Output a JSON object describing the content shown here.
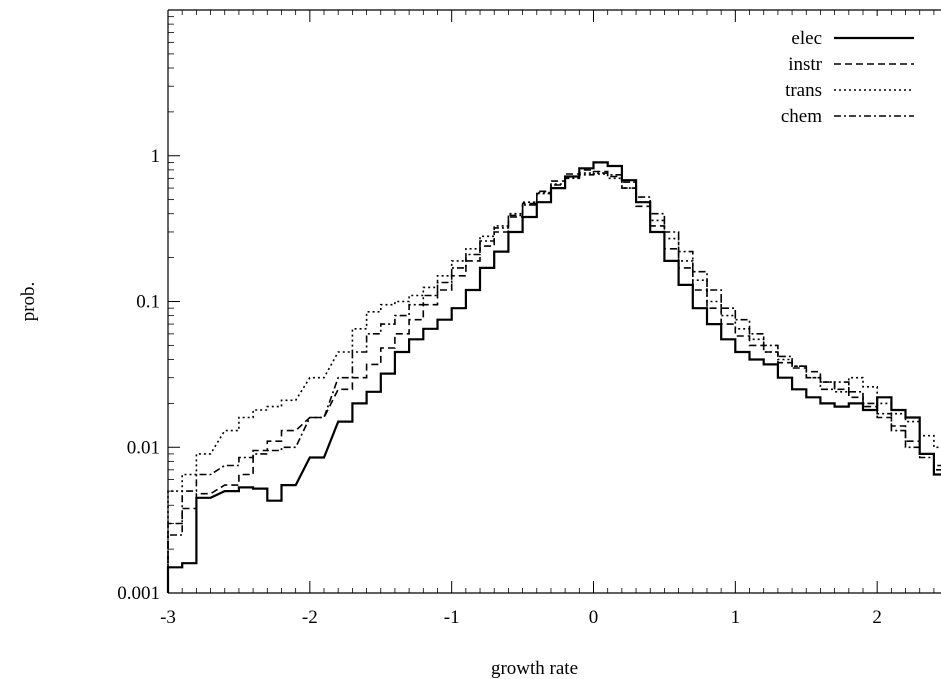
{
  "chart_data": {
    "type": "line",
    "title": "",
    "xlabel": "growth rate",
    "ylabel": "prob.",
    "xlim": [
      -3,
      2.45
    ],
    "ylim": [
      0.001,
      10
    ],
    "y_scale": "log",
    "grid": false,
    "legend_position": "top-right",
    "x_ticks": [
      -3,
      -2,
      -1,
      0,
      1,
      2
    ],
    "x_tick_labels": [
      "-3",
      "-2",
      "-1",
      "0",
      "1",
      "2"
    ],
    "y_ticks": [
      0.001,
      0.01,
      0.1,
      1
    ],
    "y_tick_labels": [
      "0.001",
      "0.01",
      "0.1",
      "1"
    ],
    "series": [
      {
        "name": "elec",
        "style": "solid",
        "stroke_width": 2.2,
        "x": [
          -3,
          -2.9,
          -2.8,
          -2.6,
          -2.5,
          -2.4,
          -2.3,
          -2.2,
          -2.0,
          -1.8,
          -1.7,
          -1.6,
          -1.5,
          -1.4,
          -1.3,
          -1.2,
          -1.1,
          -1.0,
          -0.9,
          -0.8,
          -0.7,
          -0.6,
          -0.5,
          -0.4,
          -0.3,
          -0.2,
          -0.1,
          0.0,
          0.1,
          0.2,
          0.3,
          0.4,
          0.5,
          0.6,
          0.7,
          0.8,
          0.9,
          1.0,
          1.1,
          1.2,
          1.3,
          1.4,
          1.5,
          1.6,
          1.7,
          1.8,
          1.9,
          2.0,
          2.1,
          2.2,
          2.3,
          2.4
        ],
        "y": [
          0.0015,
          0.0016,
          0.0045,
          0.005,
          0.0053,
          0.0052,
          0.0043,
          0.0055,
          0.0085,
          0.015,
          0.02,
          0.024,
          0.032,
          0.045,
          0.055,
          0.065,
          0.075,
          0.09,
          0.12,
          0.17,
          0.22,
          0.3,
          0.38,
          0.48,
          0.6,
          0.72,
          0.82,
          0.9,
          0.85,
          0.68,
          0.48,
          0.3,
          0.19,
          0.13,
          0.09,
          0.07,
          0.055,
          0.045,
          0.04,
          0.037,
          0.03,
          0.025,
          0.022,
          0.02,
          0.019,
          0.02,
          0.018,
          0.022,
          0.018,
          0.016,
          0.009,
          0.0065
        ]
      },
      {
        "name": "instr",
        "style": "dash",
        "stroke_width": 1.6,
        "x": [
          -3,
          -2.9,
          -2.8,
          -2.6,
          -2.5,
          -2.4,
          -2.3,
          -2.2,
          -2.0,
          -1.8,
          -1.7,
          -1.6,
          -1.5,
          -1.4,
          -1.3,
          -1.2,
          -1.1,
          -1.0,
          -0.9,
          -0.8,
          -0.7,
          -0.6,
          -0.5,
          -0.4,
          -0.3,
          -0.2,
          -0.1,
          0.0,
          0.1,
          0.2,
          0.3,
          0.4,
          0.5,
          0.6,
          0.7,
          0.8,
          0.9,
          1.0,
          1.1,
          1.2,
          1.3,
          1.4,
          1.5,
          1.6,
          1.7,
          1.8,
          1.9,
          2.0,
          2.1,
          2.2,
          2.3,
          2.4
        ],
        "y": [
          0.003,
          0.0038,
          0.0048,
          0.0055,
          0.0065,
          0.0095,
          0.011,
          0.013,
          0.016,
          0.025,
          0.03,
          0.037,
          0.048,
          0.06,
          0.075,
          0.095,
          0.12,
          0.15,
          0.19,
          0.24,
          0.3,
          0.38,
          0.47,
          0.57,
          0.67,
          0.75,
          0.8,
          0.78,
          0.72,
          0.6,
          0.45,
          0.33,
          0.23,
          0.17,
          0.12,
          0.09,
          0.07,
          0.058,
          0.05,
          0.045,
          0.038,
          0.035,
          0.033,
          0.028,
          0.025,
          0.022,
          0.019,
          0.016,
          0.014,
          0.011,
          0.009,
          0.0075
        ]
      },
      {
        "name": "trans",
        "style": "dot",
        "stroke_width": 1.6,
        "x": [
          -3,
          -2.9,
          -2.8,
          -2.6,
          -2.5,
          -2.4,
          -2.3,
          -2.2,
          -2.0,
          -1.8,
          -1.7,
          -1.6,
          -1.5,
          -1.4,
          -1.3,
          -1.2,
          -1.1,
          -1.0,
          -0.9,
          -0.8,
          -0.7,
          -0.6,
          -0.5,
          -0.4,
          -0.3,
          -0.2,
          -0.1,
          0.0,
          0.1,
          0.2,
          0.3,
          0.4,
          0.5,
          0.6,
          0.7,
          0.8,
          0.9,
          1.0,
          1.1,
          1.2,
          1.3,
          1.4,
          1.5,
          1.6,
          1.7,
          1.8,
          1.9,
          2.0,
          2.1,
          2.2,
          2.3,
          2.4
        ],
        "y": [
          0.005,
          0.0065,
          0.009,
          0.013,
          0.016,
          0.018,
          0.019,
          0.021,
          0.03,
          0.045,
          0.065,
          0.085,
          0.095,
          0.1,
          0.11,
          0.125,
          0.15,
          0.19,
          0.23,
          0.28,
          0.33,
          0.4,
          0.48,
          0.56,
          0.64,
          0.72,
          0.76,
          0.75,
          0.7,
          0.6,
          0.48,
          0.36,
          0.27,
          0.19,
          0.14,
          0.1,
          0.08,
          0.065,
          0.055,
          0.045,
          0.04,
          0.036,
          0.03,
          0.028,
          0.024,
          0.03,
          0.026,
          0.02,
          0.017,
          0.015,
          0.012,
          0.01
        ]
      },
      {
        "name": "chem",
        "style": "dashdot",
        "stroke_width": 1.6,
        "x": [
          -3,
          -2.9,
          -2.8,
          -2.6,
          -2.5,
          -2.4,
          -2.3,
          -2.2,
          -2.0,
          -1.8,
          -1.7,
          -1.6,
          -1.5,
          -1.4,
          -1.3,
          -1.2,
          -1.1,
          -1.0,
          -0.9,
          -0.8,
          -0.7,
          -0.6,
          -0.5,
          -0.4,
          -0.3,
          -0.2,
          -0.1,
          0.0,
          0.1,
          0.2,
          0.3,
          0.4,
          0.5,
          0.6,
          0.7,
          0.8,
          0.9,
          1.0,
          1.1,
          1.2,
          1.3,
          1.4,
          1.5,
          1.6,
          1.7,
          1.8,
          1.9,
          2.0,
          2.1,
          2.2,
          2.3,
          2.4
        ],
        "y": [
          0.0025,
          0.005,
          0.0065,
          0.0075,
          0.0085,
          0.009,
          0.0095,
          0.01,
          0.016,
          0.03,
          0.045,
          0.06,
          0.07,
          0.08,
          0.095,
          0.11,
          0.135,
          0.17,
          0.21,
          0.26,
          0.32,
          0.39,
          0.46,
          0.55,
          0.63,
          0.7,
          0.74,
          0.76,
          0.74,
          0.66,
          0.52,
          0.4,
          0.3,
          0.22,
          0.16,
          0.12,
          0.09,
          0.075,
          0.06,
          0.05,
          0.042,
          0.036,
          0.03,
          0.025,
          0.028,
          0.024,
          0.02,
          0.017,
          0.013,
          0.01,
          0.0085,
          0.007
        ]
      }
    ]
  }
}
